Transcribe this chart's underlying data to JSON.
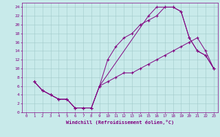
{
  "xlabel": "Windchill (Refroidissement éolien,°C)",
  "bg_color": "#c8eaea",
  "line_color": "#800080",
  "grid_color": "#a0c8c8",
  "xlim": [
    -0.5,
    23.5
  ],
  "ylim": [
    0,
    25
  ],
  "xticks": [
    0,
    1,
    2,
    3,
    4,
    5,
    6,
    7,
    8,
    9,
    10,
    11,
    12,
    13,
    14,
    15,
    16,
    17,
    18,
    19,
    20,
    21,
    22,
    23
  ],
  "yticks": [
    0,
    2,
    4,
    6,
    8,
    10,
    12,
    14,
    16,
    18,
    20,
    22,
    24
  ],
  "curve1_x": [
    1,
    2,
    3,
    4,
    5,
    6,
    7,
    8,
    9,
    15,
    16,
    17,
    18,
    19,
    20,
    21,
    22,
    23
  ],
  "curve1_y": [
    7,
    5,
    4,
    3,
    3,
    1,
    1,
    1,
    6,
    22,
    24,
    24,
    24,
    23,
    17,
    14,
    13,
    10
  ],
  "curve2_x": [
    1,
    2,
    3,
    4,
    5,
    6,
    7,
    8,
    9,
    10,
    11,
    12,
    13,
    14,
    15,
    16,
    17,
    18,
    19,
    20,
    21,
    22,
    23
  ],
  "curve2_y": [
    7,
    5,
    4,
    3,
    3,
    1,
    1,
    1,
    6,
    12,
    15,
    17,
    18,
    20,
    21,
    22,
    24,
    24,
    23,
    17,
    14,
    13,
    10
  ],
  "curve3_x": [
    1,
    2,
    3,
    4,
    5,
    6,
    7,
    8,
    9,
    10,
    11,
    12,
    13,
    14,
    15,
    16,
    17,
    18,
    19,
    20,
    21,
    22,
    23
  ],
  "curve3_y": [
    7,
    5,
    4,
    3,
    3,
    1,
    1,
    1,
    6,
    7,
    8,
    9,
    9,
    10,
    11,
    12,
    13,
    14,
    15,
    16,
    17,
    14,
    10
  ]
}
